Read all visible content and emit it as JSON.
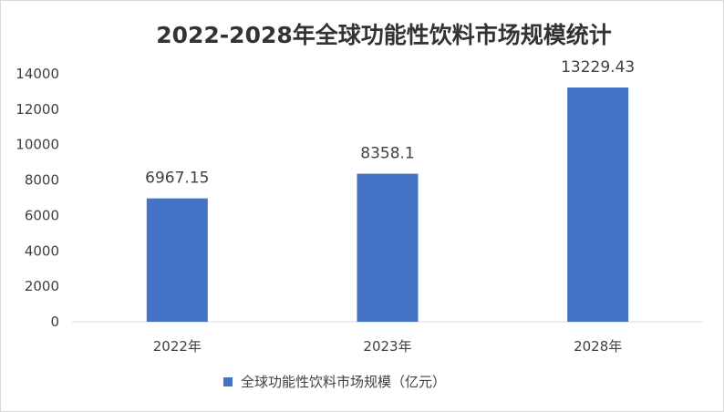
{
  "chart_data": {
    "type": "bar",
    "title": "2022-2028年全球功能性饮料市场规模统计",
    "categories": [
      "2022年",
      "2023年",
      "2028年"
    ],
    "series": [
      {
        "name": "全球功能性饮料市场规模（亿元）",
        "values": [
          6967.15,
          8358.1,
          13229.43
        ],
        "labels": [
          "6967.15",
          "8358.1",
          "13229.43"
        ],
        "color": "#4472c4"
      }
    ],
    "ylim": [
      0,
      14000
    ],
    "yticks": [
      "0",
      "2000",
      "4000",
      "6000",
      "8000",
      "10000",
      "12000",
      "14000"
    ],
    "grid": false,
    "legend": "bottom"
  }
}
